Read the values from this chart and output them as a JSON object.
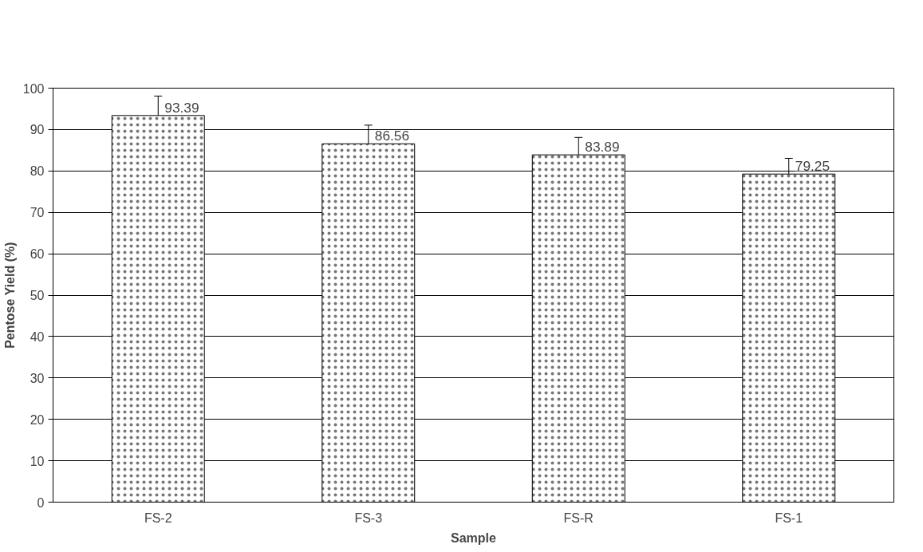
{
  "chart_data": {
    "type": "bar",
    "xlabel": "Sample",
    "ylabel": "Pentose Yield (%)",
    "categories": [
      "FS-2",
      "FS-3",
      "FS-R",
      "FS-1"
    ],
    "values": [
      93.39,
      86.56,
      83.89,
      79.25
    ],
    "errors": [
      4.7,
      4.5,
      4.2,
      3.8
    ],
    "color": "#ffffff",
    "ylim": [
      0,
      100
    ],
    "yticks": [
      0,
      10,
      20,
      30,
      40,
      50,
      60,
      70,
      80,
      90,
      100
    ],
    "grid": "y",
    "data_labels": true
  }
}
